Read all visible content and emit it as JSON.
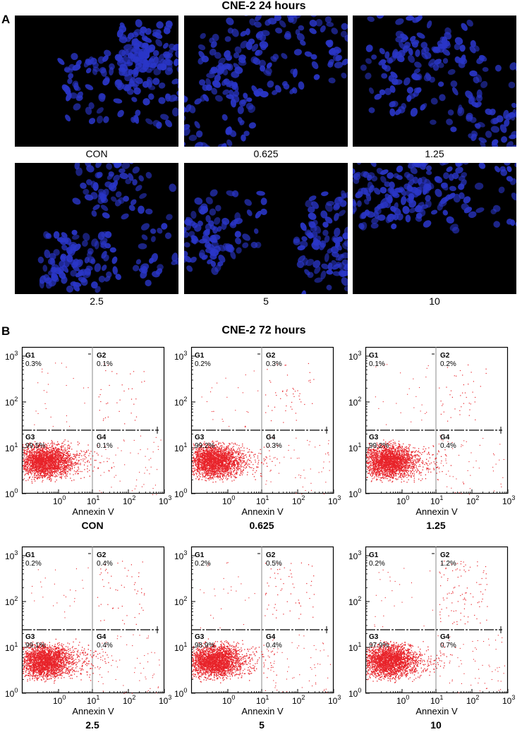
{
  "panelA": {
    "letter": "A",
    "title": "CNE-2 24 hours",
    "images": [
      {
        "label": "CON"
      },
      {
        "label": "0.625"
      },
      {
        "label": "1.25"
      },
      {
        "label": "2.5"
      },
      {
        "label": "5"
      },
      {
        "label": "10"
      }
    ]
  },
  "panelB": {
    "letter": "B",
    "title": "CNE-2 72 hours",
    "xlabel": "Annexin V",
    "ticks": [
      "10",
      "10",
      "10",
      "10"
    ],
    "exponents": [
      "0",
      "1",
      "2",
      "3"
    ],
    "plots": [
      {
        "label": "CON",
        "gates": {
          "G1": "0.3%",
          "G2": "0.1%",
          "G3": "99.5%",
          "G4": "0.1%"
        }
      },
      {
        "label": "0.625",
        "gates": {
          "G1": "0.2%",
          "G2": "0.3%",
          "G3": "99.2%",
          "G4": "0.3%"
        }
      },
      {
        "label": "1.25",
        "gates": {
          "G1": "0.1%",
          "G2": "0.2%",
          "G3": "99.2%",
          "G4": "0.4%"
        }
      },
      {
        "label": "2.5",
        "gates": {
          "G1": "0.2%",
          "G2": "0.4%",
          "G3": "99.1%",
          "G4": "0.4%"
        }
      },
      {
        "label": "5",
        "gates": {
          "G1": "0.2%",
          "G2": "0.5%",
          "G3": "98.9%",
          "G4": "0.4%"
        }
      },
      {
        "label": "10",
        "gates": {
          "G1": "0.2%",
          "G2": "1.2%",
          "G3": "97.9%",
          "G4": "0.7%"
        }
      }
    ],
    "gate_names": [
      "G1",
      "G2",
      "G3",
      "G4"
    ],
    "dot_color": "#e8232a",
    "nuclei_color": "#2a36c8"
  }
}
